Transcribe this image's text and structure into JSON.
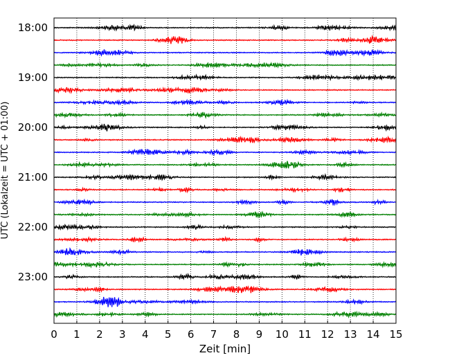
{
  "chart_data": {
    "type": "line",
    "title": "",
    "xlabel": "Zeit  [min]",
    "ylabel": "UTC (Lokalzeit = UTC + 01:00)",
    "xlim": [
      0,
      15
    ],
    "xticks": [
      0,
      1,
      2,
      3,
      4,
      5,
      6,
      7,
      8,
      9,
      10,
      11,
      12,
      13,
      14,
      15
    ],
    "xtick_labels": [
      "0",
      "1",
      "2",
      "3",
      "4",
      "5",
      "6",
      "7",
      "8",
      "9",
      "10",
      "11",
      "12",
      "13",
      "14",
      "15"
    ],
    "ylim_hours": [
      18.0,
      24.0
    ],
    "y_axis_inverted": true,
    "yticks_hours": [
      18.0,
      19.0,
      20.0,
      21.0,
      22.0,
      23.0
    ],
    "ytick_labels": [
      "18:00",
      "19:00",
      "20:00",
      "21:00",
      "22:00",
      "23:00"
    ],
    "grid": {
      "x": "dotted vertical lines at each minute",
      "y": false
    },
    "trace_interval_minutes": 15,
    "trace_color_cycle": [
      "#000000",
      "#ff0000",
      "#0000ff",
      "#008000"
    ],
    "traces_start_utc": [
      "18:00",
      "18:15",
      "18:30",
      "18:45",
      "19:00",
      "19:15",
      "19:30",
      "19:45",
      "20:00",
      "20:15",
      "20:30",
      "20:45",
      "21:00",
      "21:15",
      "21:30",
      "21:45",
      "22:00",
      "22:15",
      "22:30",
      "22:45",
      "23:00",
      "23:15",
      "23:30",
      "23:45"
    ],
    "trace_amplitude_hours": 0.05
  }
}
